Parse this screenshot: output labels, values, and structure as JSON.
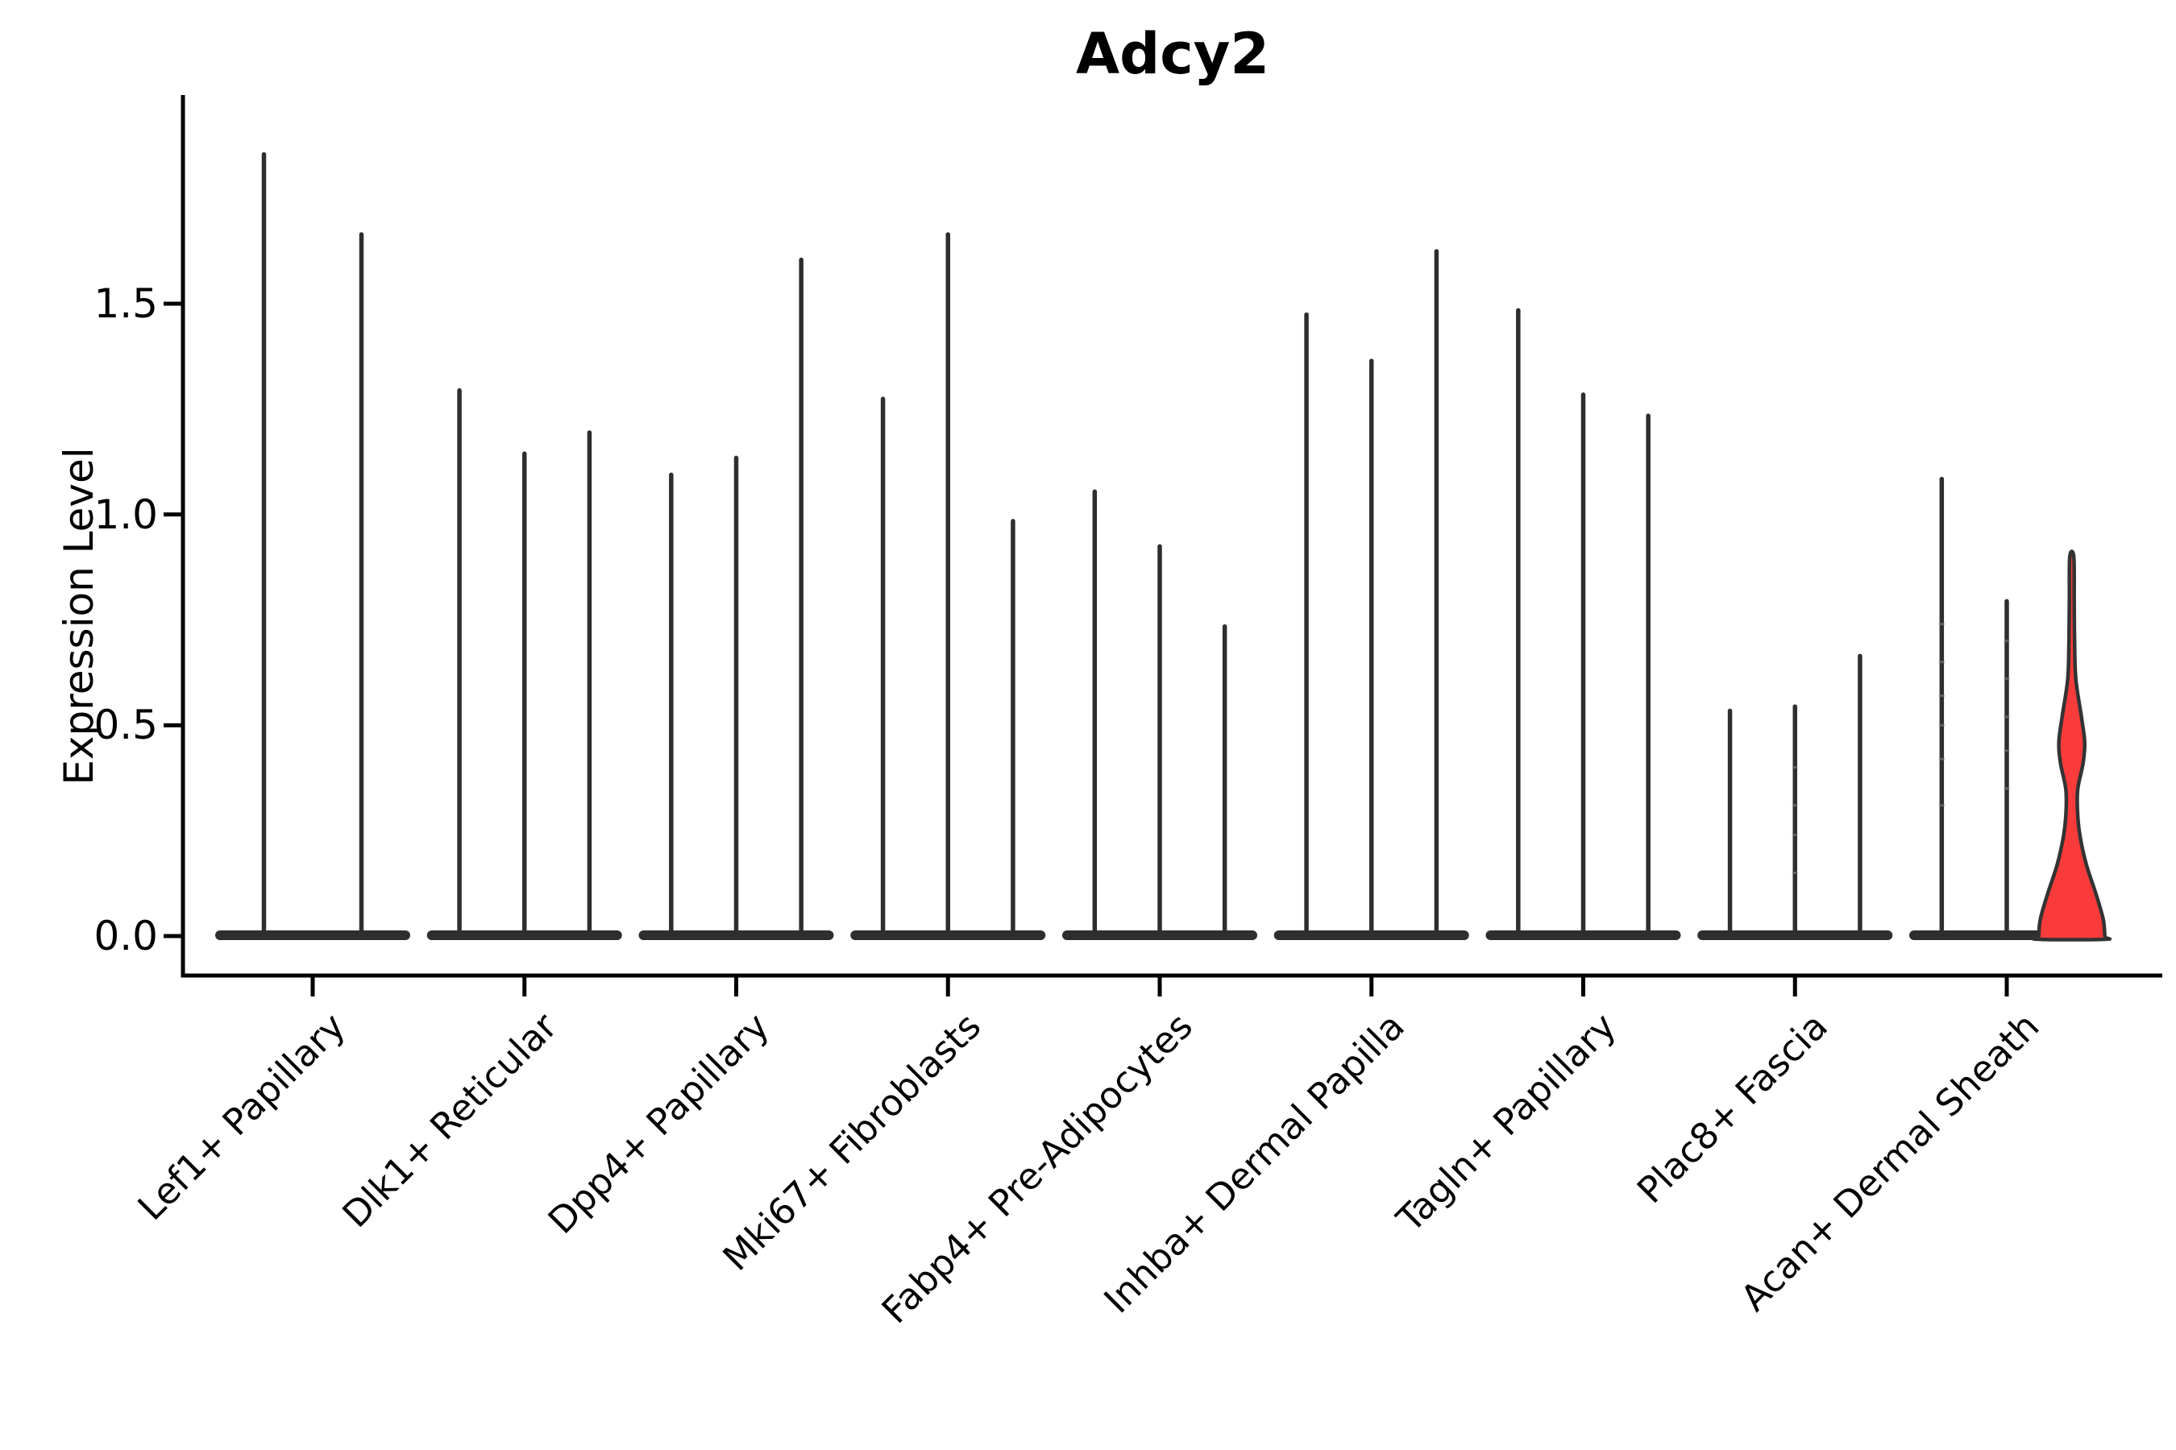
{
  "chart_data": {
    "type": "violin",
    "title": "Adcy2",
    "ylabel": "Expression Level",
    "xlabel": "",
    "ylim": [
      0,
      2.0
    ],
    "yticks": [
      0.0,
      0.5,
      1.0,
      1.5
    ],
    "ytick_labels": [
      "0.0",
      "0.5",
      "1.0",
      "1.5"
    ],
    "grid": false,
    "legend_position": "none",
    "categories": [
      "Lef1+ Papillary",
      "Dlk1+ Reticular",
      "Dpp4+ Papillary",
      "Mki67+ Fibroblasts",
      "Fabp4+ Pre-Adipocytes",
      "Inhba+ Dermal Papilla",
      "Tagln+ Papillary",
      "Plac8+ Fascia",
      "Acan+ Dermal Sheath"
    ],
    "groups": [
      {
        "violin_maxima": [
          1.86,
          1.67
        ]
      },
      {
        "violin_maxima": [
          1.3,
          1.15,
          1.2
        ]
      },
      {
        "violin_maxima": [
          1.1,
          1.14,
          1.61
        ]
      },
      {
        "violin_maxima": [
          1.28,
          1.67,
          0.99
        ]
      },
      {
        "violin_maxima": [
          1.06,
          0.93,
          0.74
        ]
      },
      {
        "violin_maxima": [
          1.48,
          1.37,
          1.63
        ]
      },
      {
        "violin_maxima": [
          1.49,
          1.29,
          1.24
        ]
      },
      {
        "violin_maxima": [
          0.54,
          0.55,
          0.67
        ]
      },
      {
        "violin_maxima": [
          1.09,
          0.8,
          0.9
        ],
        "highlight_violin_index": 2,
        "highlight_profile": [
          [
            0.9,
            2.5
          ],
          [
            0.8,
            3.0
          ],
          [
            0.7,
            3.5
          ],
          [
            0.61,
            5.0
          ],
          [
            0.52,
            12.0
          ],
          [
            0.46,
            16.0
          ],
          [
            0.41,
            14.0
          ],
          [
            0.35,
            7.5
          ],
          [
            0.3,
            7.0
          ],
          [
            0.24,
            10.0
          ],
          [
            0.17,
            18.0
          ],
          [
            0.1,
            30.0
          ],
          [
            0.04,
            39.0
          ],
          [
            0.0,
            41.0
          ]
        ]
      }
    ],
    "point_marks": [
      {
        "group": 7,
        "violin": 1,
        "values": [
          0.15,
          0.24,
          0.31,
          0.4
        ]
      },
      {
        "group": 8,
        "violin": 0,
        "values": [
          0.31,
          0.42,
          0.5,
          0.57,
          0.65,
          0.74
        ]
      },
      {
        "group": 8,
        "violin": 1,
        "values": [
          0.35,
          0.44,
          0.52,
          0.61,
          0.7
        ]
      }
    ],
    "colors": {
      "violin_line": "#2e2e2e",
      "highlight_fill": "#fa3b3b",
      "highlight_stroke": "#333333",
      "axis": "#000000"
    }
  }
}
